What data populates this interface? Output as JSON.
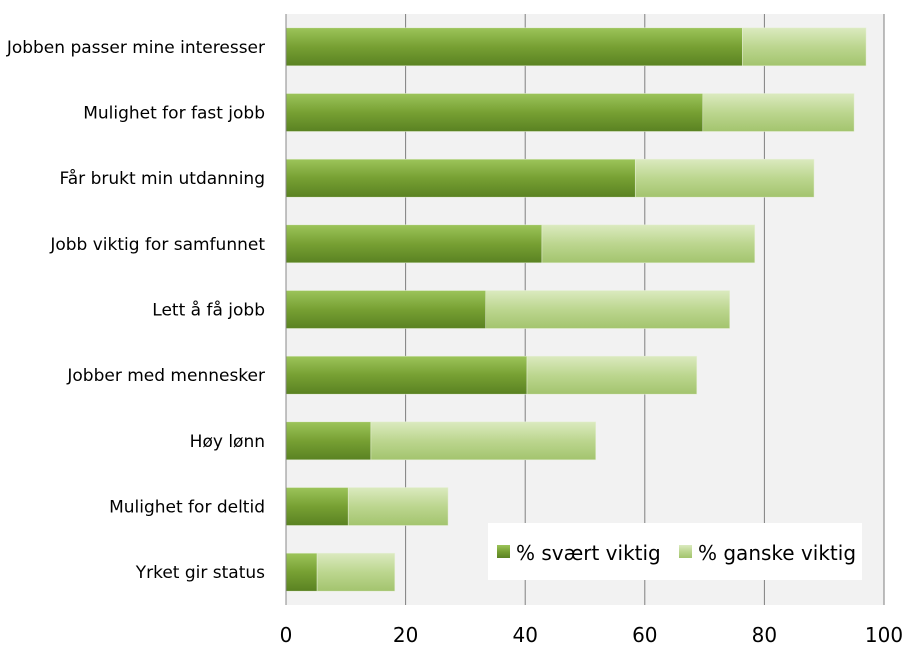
{
  "chart_data": {
    "type": "bar",
    "orientation": "horizontal",
    "stacked": true,
    "categories": [
      "Jobben passer mine interesser",
      "Mulighet for fast jobb",
      "Får brukt min utdanning",
      "Jobb viktig for samfunnet",
      "Lett å få jobb",
      "Jobber med mennesker",
      "Høy lønn",
      "Mulighet for deltid",
      "Yrket gir status"
    ],
    "series": [
      {
        "name": "% svært viktig",
        "color": "#77a033",
        "values": [
          76.3,
          69.7,
          58.4,
          42.8,
          33.4,
          40.3,
          14.2,
          10.4,
          5.2
        ]
      },
      {
        "name": "% ganske viktig",
        "color": "#bcd68f",
        "values": [
          20.7,
          25.3,
          29.9,
          35.6,
          40.8,
          28.4,
          37.6,
          16.7,
          13.0
        ]
      }
    ],
    "xlim": [
      0,
      100
    ],
    "xticks": [
      "0",
      "20",
      "40",
      "60",
      "80",
      "100"
    ],
    "grid": true,
    "legend": "bottom-right"
  }
}
